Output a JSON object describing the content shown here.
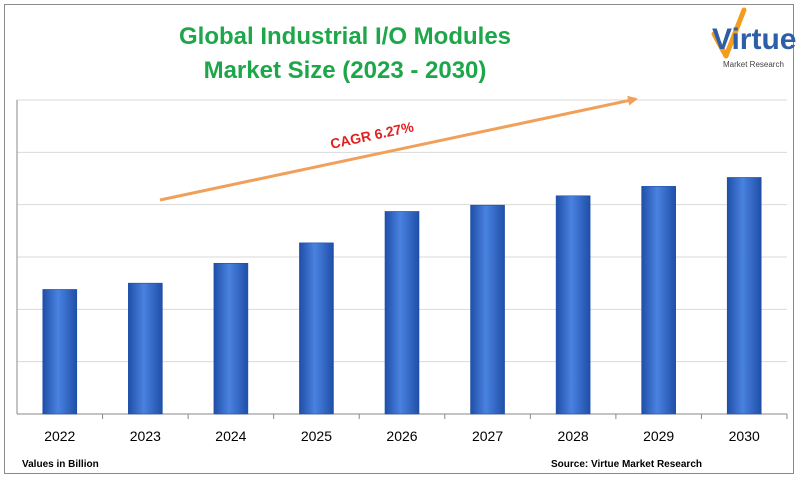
{
  "title": {
    "line1": "Global  Industrial I/O Modules",
    "line2": "Market Size  (2023 - 2030)"
  },
  "logo": {
    "word": "Virtue",
    "sub": "Market Research"
  },
  "footer": {
    "left": "Values in Billion",
    "right": "Source: Virtue Market Research"
  },
  "annotation": {
    "cagr_label": "CAGR 6.27%",
    "arrow_color": "#f0a05a",
    "label_color": "#e02020"
  },
  "colors": {
    "bar": "#3a6fd0",
    "bar_dark": "#1f4fa8",
    "title": "#1ea64b"
  },
  "chart_data": {
    "type": "bar",
    "categories": [
      "2022",
      "2023",
      "2024",
      "2025",
      "2026",
      "2027",
      "2028",
      "2029",
      "2030"
    ],
    "values": [
      2.38,
      2.5,
      2.88,
      3.27,
      3.87,
      3.99,
      4.17,
      4.35,
      4.52
    ],
    "ylim": [
      0,
      6.0
    ],
    "grid": true,
    "legend": "none",
    "title": "Global  Industrial I/O Modules Market Size  (2023 - 2030)",
    "xlabel": "",
    "ylabel": ""
  }
}
